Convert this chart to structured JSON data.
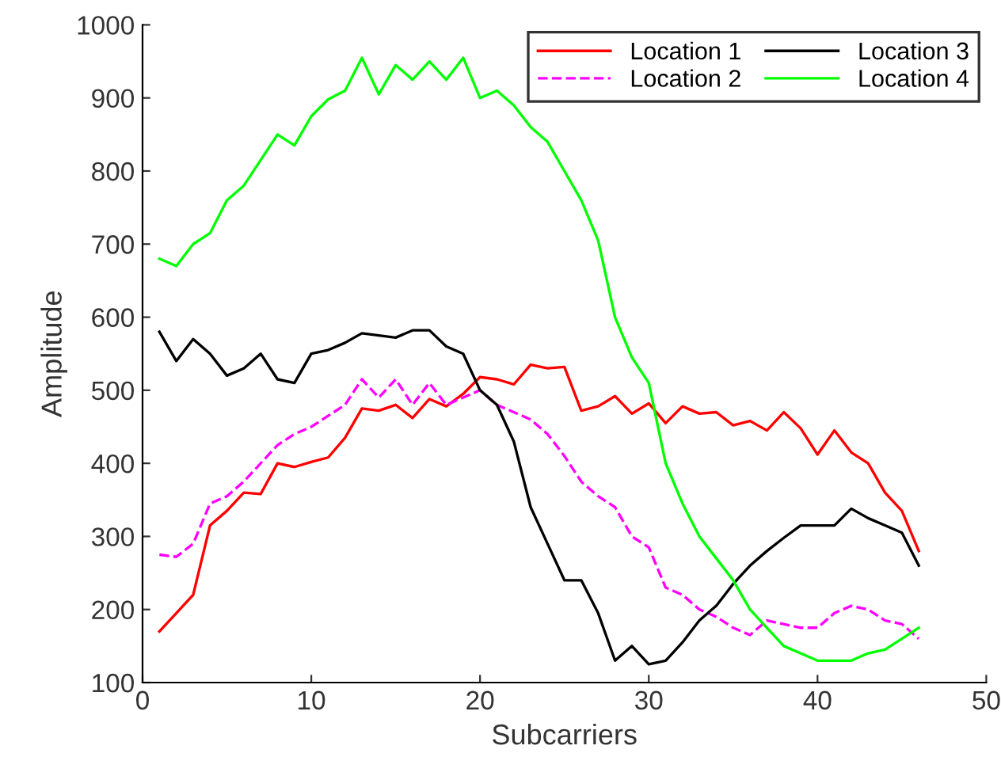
{
  "chart_data": {
    "type": "line",
    "xlabel": "Subcarriers",
    "ylabel": "Amplitude",
    "x": [
      1,
      2,
      3,
      4,
      5,
      6,
      7,
      8,
      9,
      10,
      11,
      12,
      13,
      14,
      15,
      16,
      17,
      18,
      19,
      20,
      21,
      22,
      23,
      24,
      25,
      26,
      27,
      28,
      29,
      30,
      31,
      32,
      33,
      34,
      35,
      36,
      37,
      38,
      39,
      40,
      41,
      42,
      43,
      44,
      45,
      46
    ],
    "series": [
      {
        "name": "Location 1",
        "color": "#ff0000",
        "line_style": "solid",
        "values": [
          170,
          195,
          220,
          315,
          335,
          360,
          358,
          400,
          395,
          402,
          408,
          435,
          475,
          472,
          480,
          462,
          488,
          478,
          495,
          518,
          515,
          508,
          535,
          530,
          532,
          472,
          478,
          492,
          468,
          482,
          455,
          478,
          468,
          470,
          452,
          458,
          445,
          470,
          448,
          412,
          445,
          415,
          400,
          360,
          335,
          280
        ]
      },
      {
        "name": "Location 2",
        "color": "#ff00ff",
        "line_style": "dashed",
        "values": [
          275,
          272,
          290,
          345,
          355,
          375,
          400,
          425,
          440,
          450,
          465,
          480,
          515,
          490,
          515,
          480,
          510,
          480,
          490,
          500,
          480,
          470,
          460,
          440,
          410,
          375,
          355,
          340,
          300,
          285,
          230,
          220,
          200,
          190,
          175,
          165,
          185,
          180,
          175,
          175,
          195,
          205,
          200,
          185,
          180,
          160
        ]
      },
      {
        "name": "Location 3",
        "color": "#000000",
        "line_style": "solid",
        "values": [
          580,
          540,
          570,
          550,
          520,
          530,
          550,
          515,
          510,
          550,
          555,
          565,
          578,
          575,
          572,
          582,
          582,
          560,
          550,
          500,
          480,
          430,
          340,
          290,
          240,
          240,
          195,
          130,
          150,
          125,
          130,
          155,
          185,
          205,
          235,
          260,
          280,
          298,
          315,
          315,
          315,
          338,
          325,
          315,
          305,
          260
        ]
      },
      {
        "name": "Location 4",
        "color": "#00ff00",
        "line_style": "solid",
        "values": [
          680,
          670,
          700,
          715,
          760,
          780,
          815,
          850,
          835,
          875,
          898,
          910,
          955,
          905,
          945,
          925,
          950,
          925,
          955,
          900,
          910,
          890,
          860,
          840,
          800,
          760,
          705,
          600,
          545,
          510,
          400,
          345,
          300,
          270,
          240,
          200,
          175,
          150,
          140,
          130,
          130,
          130,
          140,
          145,
          160,
          175
        ]
      }
    ],
    "xlim": [
      0,
      50
    ],
    "xticks": [
      0,
      10,
      20,
      30,
      40,
      50
    ],
    "ylim": [
      100,
      1000
    ],
    "yticks": [
      100,
      200,
      300,
      400,
      500,
      600,
      700,
      800,
      900,
      1000
    ],
    "grid": false,
    "legend": "top right",
    "marker": "none"
  }
}
